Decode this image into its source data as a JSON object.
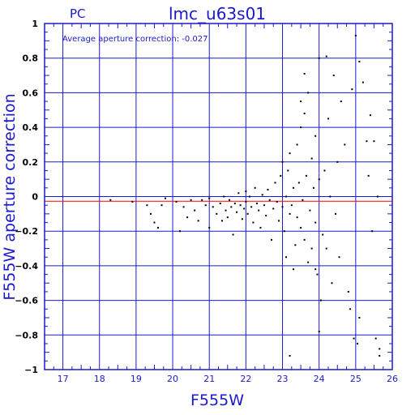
{
  "chart_data": {
    "type": "scatter",
    "title": "lmc_u63s01",
    "camera_label": "PC",
    "annotation": "Average aperture correction: -0.027",
    "xlabel": "F555W",
    "ylabel": "F555W aperture correction",
    "xlim": [
      16.5,
      26
    ],
    "ylim": [
      -1,
      1
    ],
    "x_ticks": [
      17,
      18,
      19,
      20,
      21,
      22,
      23,
      24,
      25,
      26
    ],
    "y_ticks": [
      1,
      0.8,
      0.6,
      0.4,
      0.2,
      0,
      -0.2,
      -0.4,
      -0.6,
      -0.8,
      -1
    ],
    "y_tick_labels": [
      "1",
      "0.8",
      "0.6",
      "0.4",
      "0.2",
      "0",
      "−0.2",
      "−0.4",
      "−0.6",
      "−0.8",
      "−1"
    ],
    "grid": true,
    "reference_line": {
      "y": -0.027,
      "color": "#ff0000"
    },
    "colors": {
      "grid": "#1a1acc",
      "axes": "#1a1acc",
      "points": "#000000",
      "text": "#1a1acc"
    },
    "points": [
      [
        18.3,
        -0.02
      ],
      [
        18.9,
        -0.03
      ],
      [
        19.3,
        -0.05
      ],
      [
        19.4,
        -0.1
      ],
      [
        19.5,
        -0.15
      ],
      [
        19.6,
        -0.18
      ],
      [
        19.7,
        -0.05
      ],
      [
        19.8,
        -0.01
      ],
      [
        20.1,
        -0.03
      ],
      [
        20.2,
        -0.2
      ],
      [
        20.3,
        -0.06
      ],
      [
        20.4,
        -0.12
      ],
      [
        20.5,
        -0.02
      ],
      [
        20.6,
        -0.08
      ],
      [
        20.7,
        -0.14
      ],
      [
        20.8,
        -0.02
      ],
      [
        20.9,
        -0.05
      ],
      [
        21.0,
        -0.01
      ],
      [
        21.0,
        -0.18
      ],
      [
        21.1,
        -0.06
      ],
      [
        21.2,
        -0.1
      ],
      [
        21.3,
        -0.04
      ],
      [
        21.35,
        -0.14
      ],
      [
        21.4,
        0.0
      ],
      [
        21.45,
        -0.08
      ],
      [
        21.5,
        -0.12
      ],
      [
        21.55,
        -0.02
      ],
      [
        21.6,
        -0.06
      ],
      [
        21.65,
        -0.22
      ],
      [
        21.7,
        -0.04
      ],
      [
        21.75,
        -0.09
      ],
      [
        21.8,
        0.02
      ],
      [
        21.85,
        -0.05
      ],
      [
        21.9,
        -0.13
      ],
      [
        21.95,
        -0.07
      ],
      [
        22.0,
        0.03
      ],
      [
        22.0,
        -0.03
      ],
      [
        22.05,
        -0.1
      ],
      [
        22.1,
        0.0
      ],
      [
        22.15,
        -0.06
      ],
      [
        22.2,
        -0.15
      ],
      [
        22.25,
        0.05
      ],
      [
        22.3,
        -0.04
      ],
      [
        22.35,
        -0.08
      ],
      [
        22.4,
        -0.18
      ],
      [
        22.45,
        0.01
      ],
      [
        22.5,
        -0.05
      ],
      [
        22.55,
        -0.11
      ],
      [
        22.6,
        0.04
      ],
      [
        22.65,
        -0.02
      ],
      [
        22.7,
        -0.25
      ],
      [
        22.75,
        -0.07
      ],
      [
        22.8,
        0.08
      ],
      [
        22.85,
        -0.03
      ],
      [
        22.9,
        -0.14
      ],
      [
        22.95,
        0.12
      ],
      [
        23.0,
        -0.06
      ],
      [
        23.0,
        0.2
      ],
      [
        23.05,
        -0.2
      ],
      [
        23.1,
        0.0
      ],
      [
        23.1,
        -0.35
      ],
      [
        23.15,
        0.15
      ],
      [
        23.2,
        -0.1
      ],
      [
        23.2,
        0.25
      ],
      [
        23.25,
        -0.05
      ],
      [
        23.3,
        -0.42
      ],
      [
        23.3,
        0.05
      ],
      [
        23.35,
        -0.28
      ],
      [
        23.4,
        0.3
      ],
      [
        23.4,
        -0.12
      ],
      [
        23.45,
        0.08
      ],
      [
        23.5,
        -0.18
      ],
      [
        23.5,
        0.4
      ],
      [
        23.55,
        -0.02
      ],
      [
        23.6,
        0.48
      ],
      [
        23.6,
        -0.25
      ],
      [
        23.65,
        0.12
      ],
      [
        23.7,
        -0.38
      ],
      [
        23.7,
        0.6
      ],
      [
        23.75,
        -0.08
      ],
      [
        23.8,
        0.22
      ],
      [
        23.8,
        -0.3
      ],
      [
        23.85,
        0.05
      ],
      [
        23.9,
        0.35
      ],
      [
        23.9,
        -0.15
      ],
      [
        23.95,
        -0.45
      ],
      [
        24.0,
        0.1
      ],
      [
        24.0,
        0.8
      ],
      [
        24.05,
        -0.6
      ],
      [
        24.1,
        -0.22
      ],
      [
        24.15,
        0.15
      ],
      [
        24.2,
        -0.3
      ],
      [
        24.25,
        0.45
      ],
      [
        24.3,
        0.0
      ],
      [
        24.35,
        -0.5
      ],
      [
        24.4,
        0.7
      ],
      [
        24.45,
        -0.1
      ],
      [
        24.5,
        0.2
      ],
      [
        24.55,
        -0.35
      ],
      [
        24.6,
        0.55
      ],
      [
        24.7,
        0.3
      ],
      [
        24.8,
        -0.55
      ],
      [
        24.85,
        -0.65
      ],
      [
        24.9,
        0.62
      ],
      [
        24.95,
        -0.82
      ],
      [
        25.0,
        0.93
      ],
      [
        25.05,
        -0.85
      ],
      [
        25.1,
        -0.7
      ],
      [
        25.1,
        0.78
      ],
      [
        25.2,
        0.66
      ],
      [
        25.3,
        0.32
      ],
      [
        25.35,
        0.12
      ],
      [
        25.4,
        0.47
      ],
      [
        25.45,
        -0.2
      ],
      [
        25.5,
        0.32
      ],
      [
        25.55,
        -0.82
      ],
      [
        25.6,
        0.0
      ],
      [
        25.65,
        -0.88
      ],
      [
        25.65,
        -0.92
      ],
      [
        23.2,
        -0.92
      ],
      [
        23.6,
        0.71
      ],
      [
        24.2,
        0.81
      ],
      [
        23.9,
        -0.42
      ],
      [
        24.0,
        -0.78
      ],
      [
        23.5,
        0.55
      ]
    ]
  }
}
